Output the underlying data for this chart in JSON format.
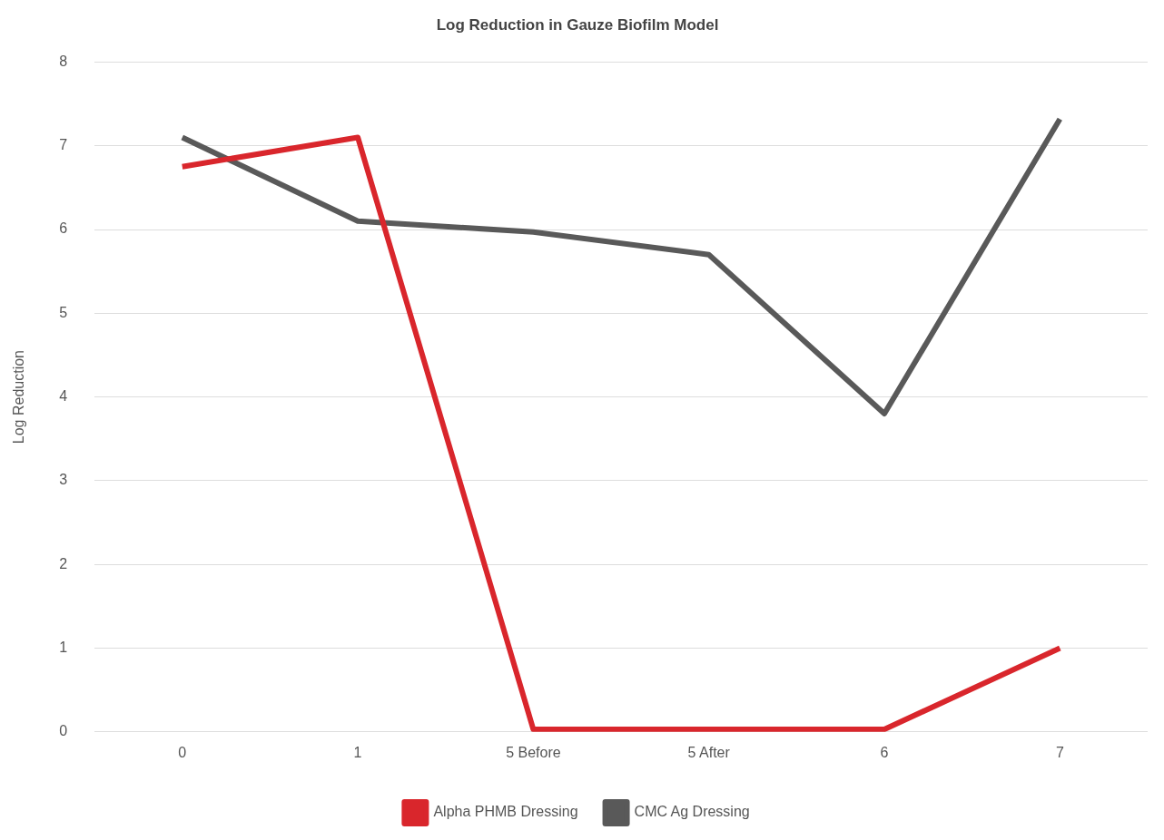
{
  "chart_data": {
    "type": "line",
    "title": "Log Reduction in Gauze Biofilm Model",
    "ylabel": "Log Reduction",
    "categories": [
      "0",
      "1",
      "5 Before",
      "5 After",
      "6",
      "7"
    ],
    "series": [
      {
        "name": "Alpha PHMB Dressing",
        "color": "#d9262c",
        "values": [
          6.75,
          7.1,
          0.03,
          0.03,
          0.03,
          1.0
        ]
      },
      {
        "name": "CMC Ag Dressing",
        "color": "#595959",
        "values": [
          7.1,
          6.1,
          5.97,
          5.7,
          3.8,
          7.32
        ]
      }
    ],
    "ylim": [
      0,
      8
    ],
    "yticks": [
      0,
      1,
      2,
      3,
      4,
      5,
      6,
      7,
      8
    ],
    "grid": "y",
    "legend": "bottom",
    "marker": "none",
    "line_style": "solid"
  }
}
